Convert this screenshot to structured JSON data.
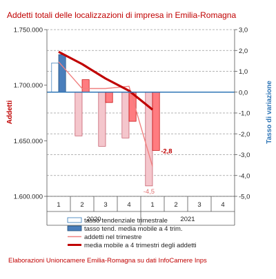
{
  "chart_data": {
    "type": "bar",
    "title": "Addetti totali delle localizzazioni di impresa in Emilia-Romagna",
    "ylabel": "Addetti",
    "y2label": "Tasso di variazione",
    "ylim": [
      1600000,
      1750000
    ],
    "y2lim": [
      -5.0,
      3.0
    ],
    "yticks": [
      "1.750.000",
      "1.700.000",
      "1.650.000",
      "1.600.000"
    ],
    "y2ticks": [
      "3,0",
      "2,0",
      "1,0",
      "0,0",
      "-1,0",
      "-2,0",
      "-3,0",
      "-4,0",
      "-5,0"
    ],
    "quarters": [
      "1",
      "2",
      "3",
      "4",
      "1",
      "2",
      "3",
      "4"
    ],
    "years": [
      "2020",
      "2021"
    ],
    "series": [
      {
        "name": "tasso tendenziale trimestrale",
        "kind": "bar",
        "axis": "right",
        "values": [
          1.4,
          -2.1,
          -2.6,
          -2.2,
          -4.5,
          null,
          null,
          null
        ]
      },
      {
        "name": "tasso tend. media mobile a 4 trim.",
        "kind": "bar",
        "axis": "right",
        "values": [
          1.8,
          0.6,
          -0.5,
          -1.4,
          -2.8,
          null,
          null,
          null
        ]
      },
      {
        "name": "addetti nel trimestre",
        "kind": "line",
        "axis": "left",
        "values": [
          1721000,
          1697000,
          1697000,
          1699000,
          1627000,
          null,
          null,
          null
        ]
      },
      {
        "name": "media mobile a 4 trimestri degli addetti",
        "kind": "line",
        "axis": "left",
        "values": [
          1730000,
          1719000,
          1706000,
          1695000,
          1678000,
          null,
          null,
          null
        ]
      }
    ],
    "annotations": [
      {
        "label": "-2,8",
        "series": 1,
        "index": 4
      },
      {
        "label": "-4,5",
        "series": 0,
        "index": 4
      }
    ],
    "legend_position": "bottom",
    "grid": "dashed-horizontal",
    "colors": {
      "bar_tend": "#f4c6cc",
      "bar_tend_stroke": "#c05060",
      "bar_mm": "#ff7c80",
      "bar_mm_stroke": "#c00000",
      "bar_tend_2020_q1": "#ffffff",
      "bar_tend_2020_q1_stroke": "#2e75b6",
      "bar_mm_2020_q1": "#4a7ebb",
      "bar_mm_2020_q1_stroke": "#1f4e79",
      "line_addetti": "#f08080",
      "line_mm": "#c00000",
      "zero_line": "#2e75b6"
    }
  },
  "footer": {
    "source": "Elaborazioni Unioncamere Emilia-Romagna su dati InfoCamere Inps"
  }
}
